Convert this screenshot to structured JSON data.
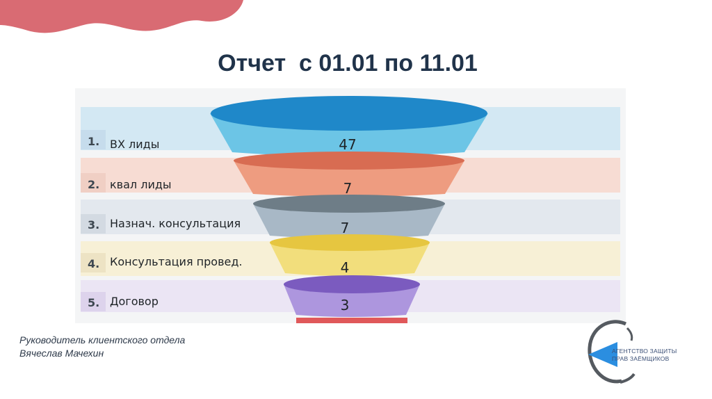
{
  "slide": {
    "title": "Отчет  с 01.01 по 11.01",
    "footer_line1": "Руководитель клиентского отдела",
    "footer_line2": "Вячеслав Мачехин",
    "logo_line1": "АГЕНТСТВО ЗАЩИТЫ",
    "logo_line2": "ПРАВ ЗАЁМЩИКОВ"
  },
  "funnel": {
    "rows": [
      {
        "num": "1.",
        "label": "ВХ лиды",
        "value": "47"
      },
      {
        "num": "2.",
        "label": "квал лиды",
        "value": "7"
      },
      {
        "num": "3.",
        "label": "Назнач. консультация",
        "value": "7"
      },
      {
        "num": "4.",
        "label": "Консультация провед.",
        "value": "4"
      },
      {
        "num": "5.",
        "label": "Договор",
        "value": "3"
      }
    ]
  },
  "colors": {
    "title": "#20334a",
    "stage1": "#6cc5e6",
    "stage2": "#ee9c80",
    "stage3": "#a8b8c6",
    "stage4": "#f2de7c",
    "stage5": "#ad96de",
    "stage6": "#e0585a",
    "blob": "#d96b73",
    "logo": "#2b8ee0"
  }
}
